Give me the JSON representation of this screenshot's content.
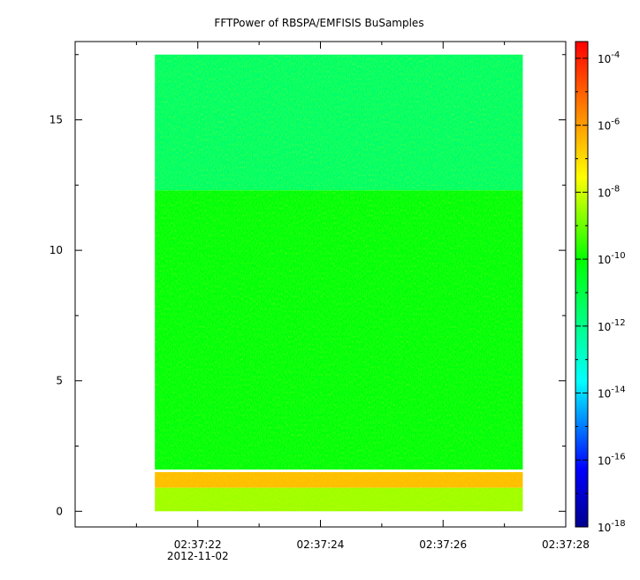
{
  "chart_data": {
    "type": "heatmap",
    "title": "FFTPower of RBSPA/EMFISIS  BuSamples",
    "xlabel": "",
    "ylabel": "",
    "x_start": "02:37:21.3",
    "x_end": "02:37:27.3",
    "xlim": [
      "02:37:20.0",
      "02:37:28.0"
    ],
    "ylim": [
      -0.6,
      18.0
    ],
    "y_data_range": [
      0,
      17.5
    ],
    "x_ticks": [
      "02:37:22",
      "02:37:24",
      "02:37:26",
      "02:37:28"
    ],
    "x_date_label": "2012-11-02",
    "y_ticks": [
      0,
      5,
      10,
      15
    ],
    "colorbar": {
      "scale": "log",
      "range": [
        "1e-18",
        "1e-3.5"
      ],
      "tick_bases": [
        "10",
        "10",
        "10",
        "10",
        "10",
        "10",
        "10",
        "10"
      ],
      "tick_exponents": [
        "-4",
        "-6",
        "-8",
        "-10",
        "-12",
        "-14",
        "-16",
        "-18"
      ],
      "tick_values": [
        -4,
        -6,
        -8,
        -10,
        -12,
        -14,
        -16,
        -18
      ],
      "colormap": [
        "#00008f",
        "#0000ff",
        "#00ffff",
        "#00ff00",
        "#ffff00",
        "#ff8000",
        "#ff0000"
      ]
    },
    "regions": [
      {
        "y_from": 12.3,
        "y_to": 17.5,
        "description_level": -11.5
      },
      {
        "y_from": 1.6,
        "y_to": 12.3,
        "description_level": -10.2
      },
      {
        "y_from": 0.9,
        "y_to": 1.5,
        "description_level": -6.5
      },
      {
        "y_from": 0.0,
        "y_to": 0.9,
        "description_level": -8.5
      }
    ],
    "grid": false,
    "legend": "none"
  }
}
